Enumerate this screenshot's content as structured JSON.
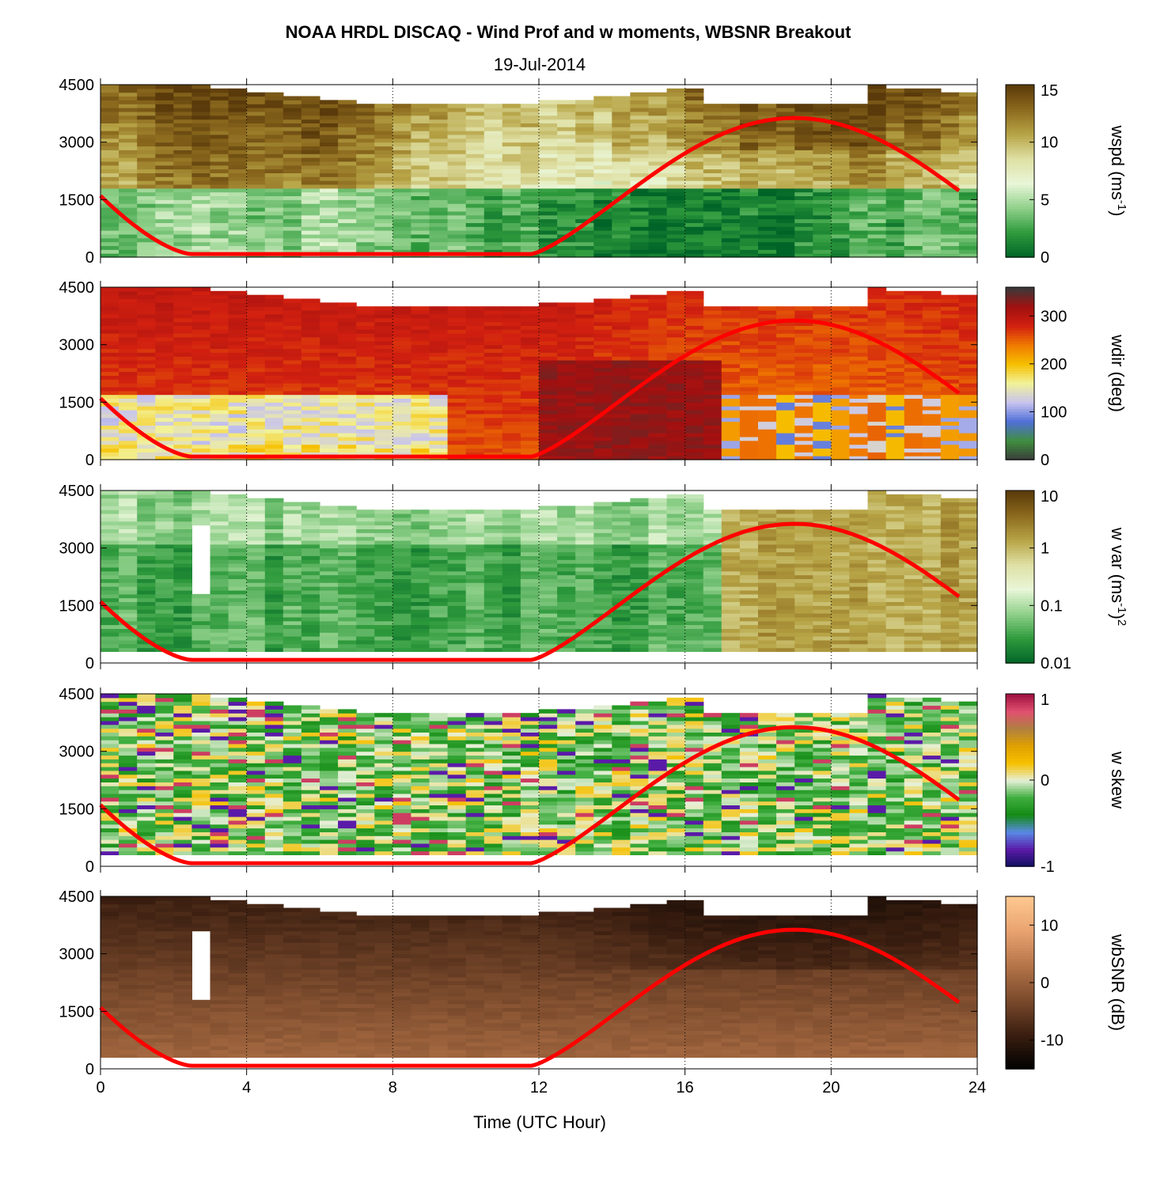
{
  "figure": {
    "title": "NOAA HRDL DISCAQ - Wind Prof and w moments, WBSNR Breakout",
    "subtitle": "19-Jul-2014",
    "xlabel": "Time (UTC Hour)",
    "x_ticks": [
      "0",
      "4",
      "8",
      "12",
      "16",
      "20",
      "24"
    ],
    "y_ticks": [
      "0",
      "1500",
      "3000",
      "4500"
    ]
  },
  "chart_data": [
    {
      "type": "heatmap",
      "variable": "wspd",
      "colorbar_label": "wspd (ms",
      "colorbar_label_sup": "-1",
      "colorbar_label_end": ")",
      "colorbar_ticks": [
        "0",
        "5",
        "10",
        "15"
      ],
      "clim": [
        0,
        15
      ],
      "colormap": [
        "#006428",
        "#2e9a3c",
        "#8fd08a",
        "#e9f6d8",
        "#dfe0a4",
        "#b7a446",
        "#8c6a1e",
        "#5a3a0a"
      ],
      "xlim": [
        0,
        24
      ],
      "ylim": [
        0,
        4500
      ],
      "grid": "x-dotted",
      "boundary_layer_curve_color": "#ff0000"
    },
    {
      "type": "heatmap",
      "variable": "wdir",
      "colorbar_label": "wdir (deg)",
      "colorbar_ticks": [
        "0",
        "100",
        "200",
        "300"
      ],
      "clim": [
        0,
        360
      ],
      "colormap": [
        "#3a3a3a",
        "#3f8f3f",
        "#4f6fd8",
        "#c7c3ee",
        "#f2f29a",
        "#f6c000",
        "#f07a00",
        "#d22010",
        "#a01010",
        "#3a3a3a"
      ],
      "xlim": [
        0,
        24
      ],
      "ylim": [
        0,
        4500
      ],
      "grid": "x-dotted",
      "boundary_layer_curve_color": "#ff0000"
    },
    {
      "type": "heatmap",
      "variable": "w var",
      "colorbar_label": "w var (ms",
      "colorbar_label_sup": "-1",
      "colorbar_label_end": ")",
      "colorbar_label_sup2": "2",
      "colorbar_ticks": [
        "0.01",
        "0.1",
        "1",
        "10"
      ],
      "clim": [
        0.01,
        10
      ],
      "scale": "log",
      "colormap": [
        "#006428",
        "#2e9a3c",
        "#8fd08a",
        "#e9f6d8",
        "#dfe0a4",
        "#b7a446",
        "#8c6a1e",
        "#5a3a0a"
      ],
      "xlim": [
        0,
        24
      ],
      "ylim": [
        0,
        4500
      ],
      "grid": "x-dotted",
      "boundary_layer_curve_color": "#ff0000"
    },
    {
      "type": "heatmap",
      "variable": "w skew",
      "colorbar_label": "w skew",
      "colorbar_ticks": [
        "-1",
        "0",
        "1"
      ],
      "clim": [
        -1,
        1
      ],
      "colormap": [
        "#101060",
        "#5a1aa8",
        "#5a8ae6",
        "#138a13",
        "#3fae3f",
        "#e6f0d8",
        "#f6c000",
        "#e0a000",
        "#b08040",
        "#e05070",
        "#a01040"
      ],
      "xlim": [
        0,
        24
      ],
      "ylim": [
        0,
        4500
      ],
      "grid": "x-dotted",
      "boundary_layer_curve_color": "#ff0000"
    },
    {
      "type": "heatmap",
      "variable": "wbSNR",
      "colorbar_label": "wbSNR (dB)",
      "colorbar_ticks": [
        "-10",
        "0",
        "10"
      ],
      "clim": [
        -15,
        15
      ],
      "colormap": [
        "#000000",
        "#3a1e10",
        "#7a4a2c",
        "#b47448",
        "#e8a270",
        "#ffc890"
      ],
      "xlim": [
        0,
        24
      ],
      "ylim": [
        0,
        4500
      ],
      "grid": "x-dotted",
      "boundary_layer_curve_color": "#ff0000"
    }
  ]
}
